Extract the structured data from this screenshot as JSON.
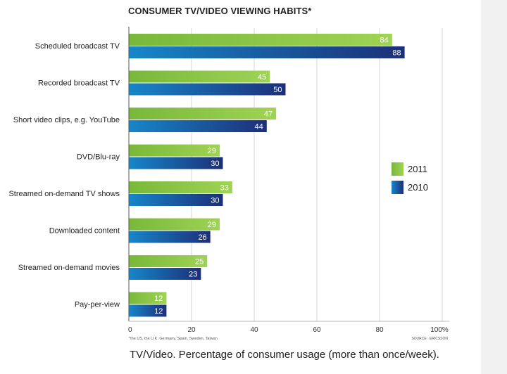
{
  "chart_data": {
    "type": "bar",
    "orientation": "horizontal",
    "title": "CONSUMER TV/VIDEO VIEWING HABITS*",
    "categories": [
      "Scheduled broadcast TV",
      "Recorded broadcast TV",
      "Short video clips, e.g. YouTube",
      "DVD/Blu-ray",
      "Streamed on-demand TV shows",
      "Downloaded content",
      "Streamed on-demand movies",
      "Pay-per-view"
    ],
    "series": [
      {
        "name": "2011",
        "color": "#8cc63f",
        "values": [
          84,
          45,
          47,
          29,
          33,
          29,
          25,
          12
        ]
      },
      {
        "name": "2010",
        "color": "#1f4f8f",
        "values": [
          88,
          50,
          44,
          30,
          30,
          26,
          23,
          12
        ]
      }
    ],
    "xlim": [
      0,
      100
    ],
    "xticks": [
      "0",
      "20",
      "40",
      "60",
      "80",
      "100%"
    ],
    "xlabel": "",
    "ylabel": "",
    "grid": true,
    "legend_position": "right",
    "footnote": "*the US, the U.K. Germany, Spain, Sweden, Taiwan",
    "source": "SOURCE : ERICSSON"
  },
  "caption": "TV/Video. Percentage of consumer usage (more than once/week)."
}
